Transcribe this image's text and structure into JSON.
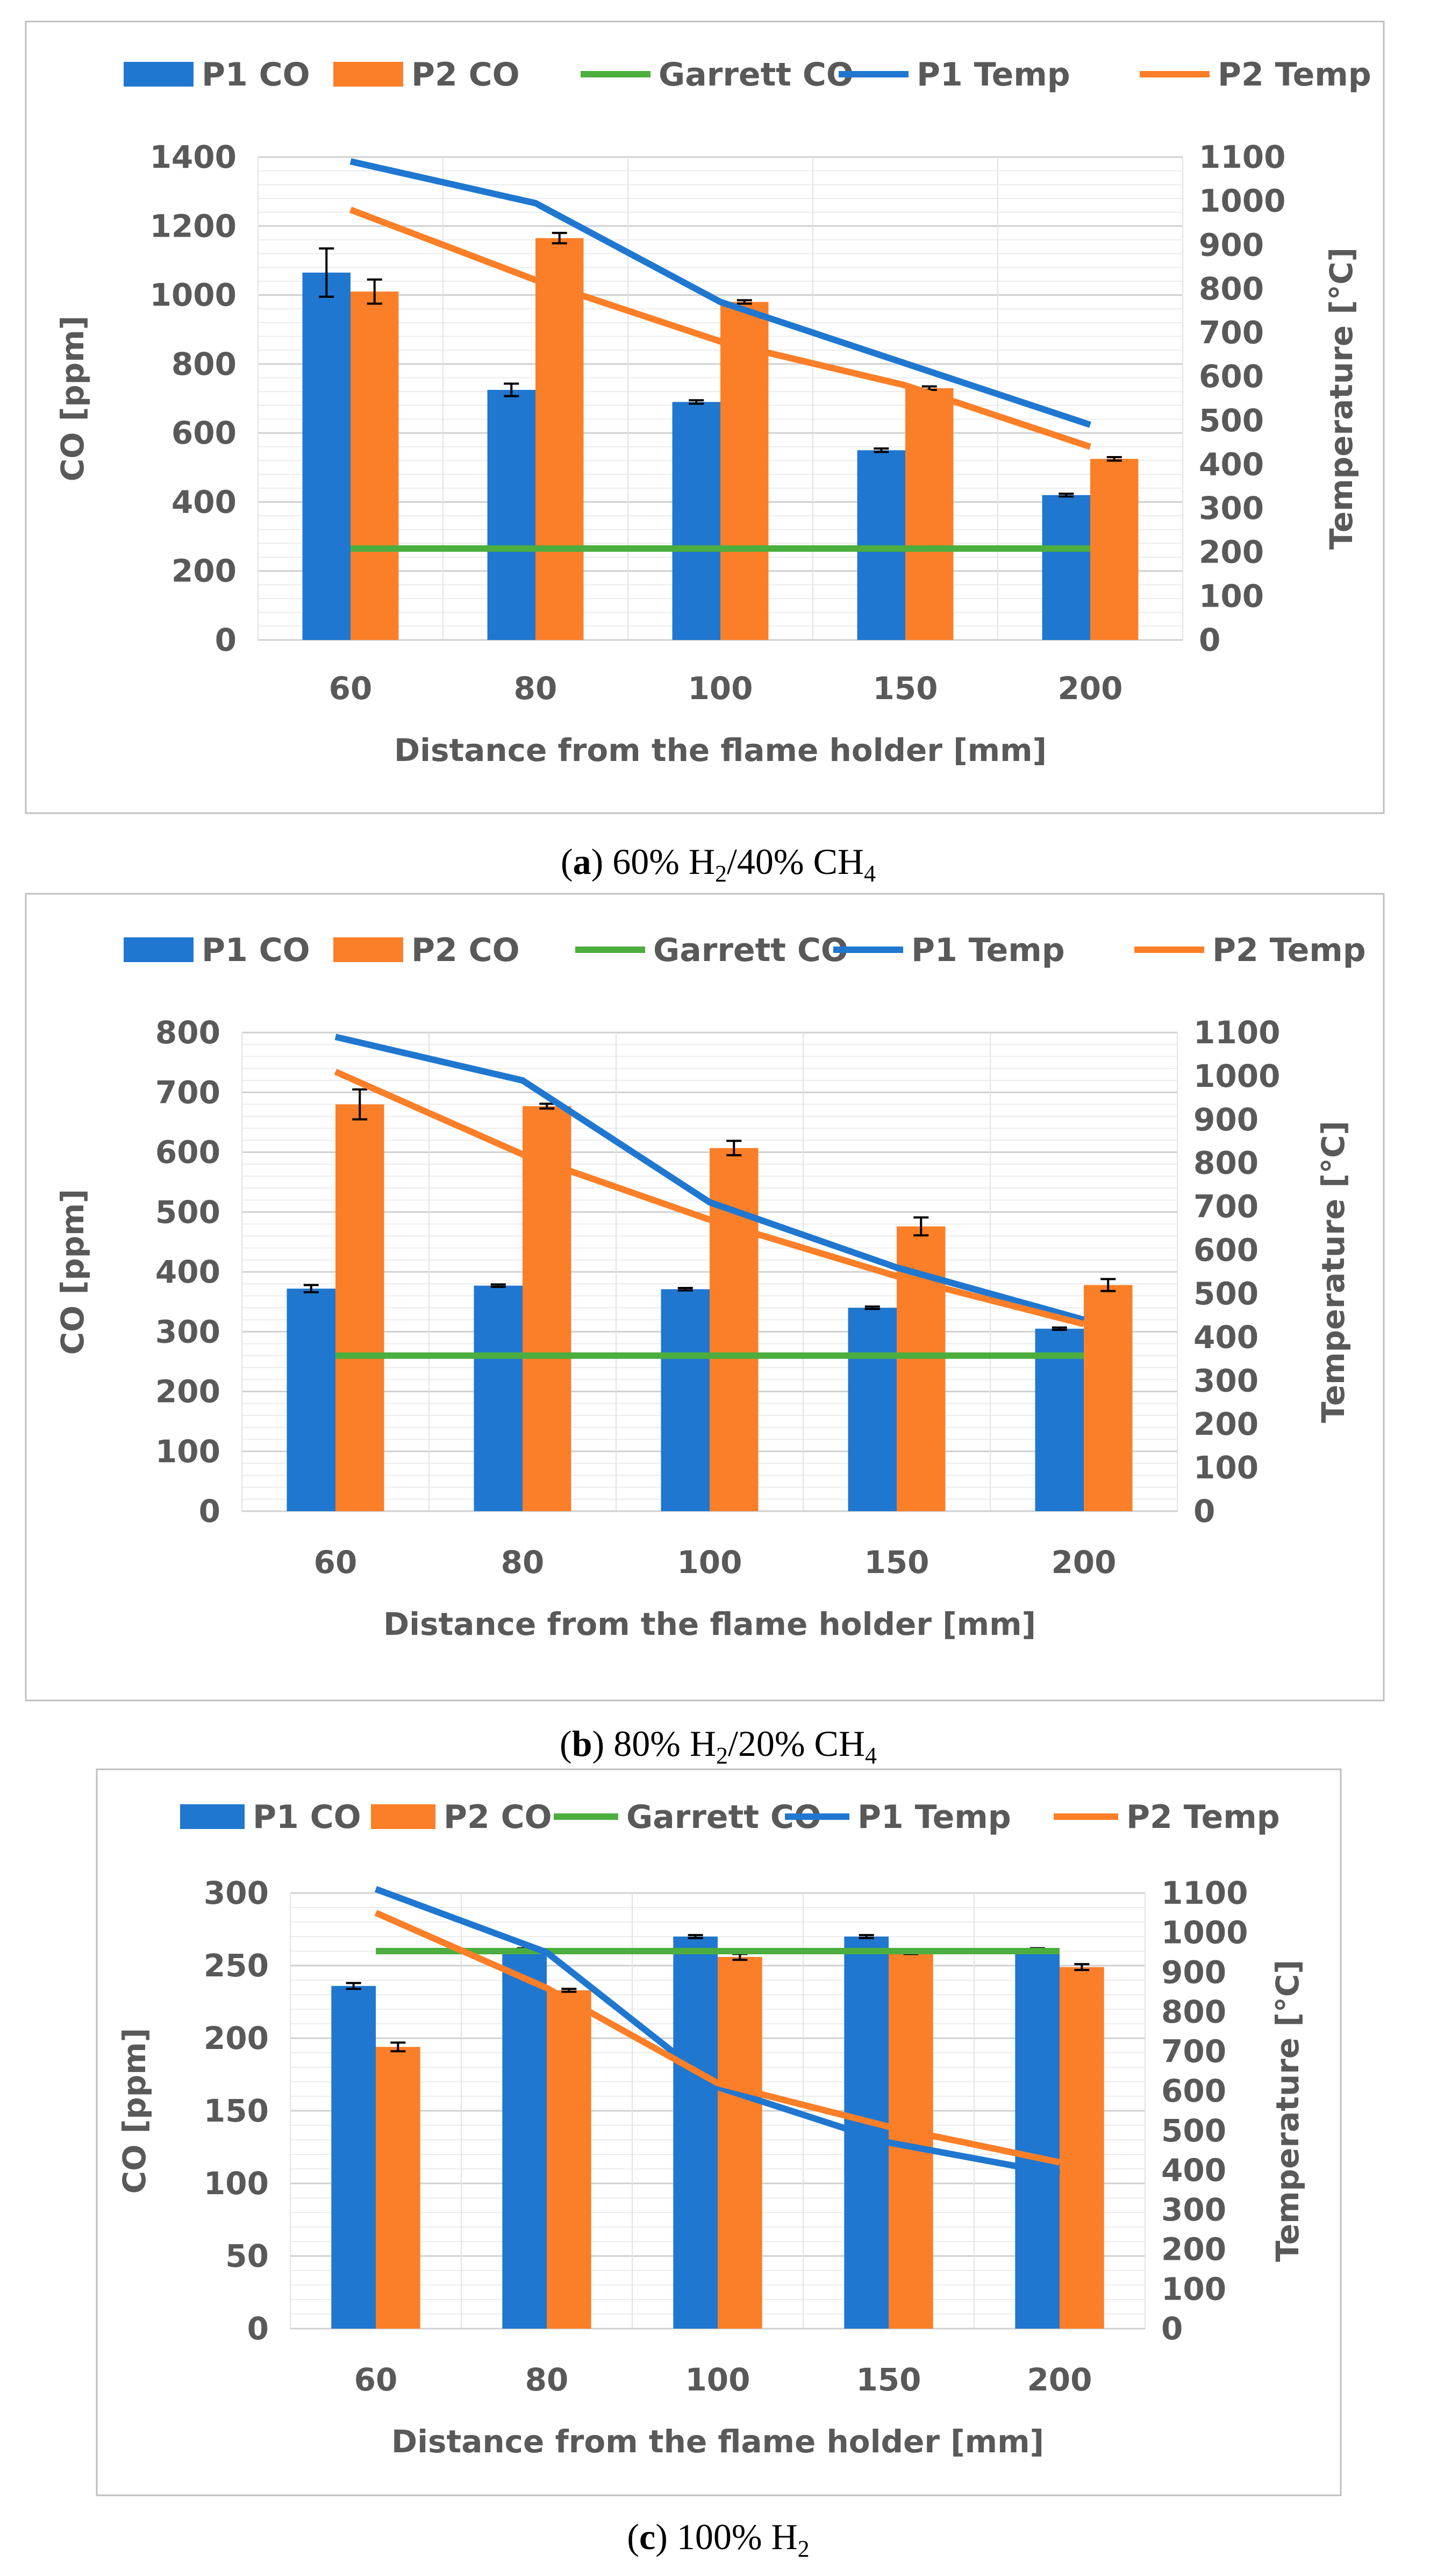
{
  "colors": {
    "p1": "#1f77d0",
    "p2": "#fb7f28",
    "garrett": "#4cae3e",
    "axis_text": "#595959",
    "grid": "#d9d9d9",
    "frame": "#bfbfbf"
  },
  "chart_data": [
    {
      "type": "bar",
      "panel_letter": "a",
      "caption_text": "60% H2/40% CH4",
      "caption_parts": [
        {
          "t": "60% H",
          "sub": false
        },
        {
          "t": "2",
          "sub": true
        },
        {
          "t": "/40% CH",
          "sub": false
        },
        {
          "t": "4",
          "sub": true
        }
      ],
      "categories": [
        "60",
        "80",
        "100",
        "150",
        "200"
      ],
      "xlabel": "Distance from the flame holder [mm]",
      "ylabel": "CO [ppm]",
      "y2label": "Temperature [°C]",
      "ylim": [
        0,
        1400
      ],
      "yticks": [
        0,
        200,
        400,
        600,
        800,
        1000,
        1200,
        1400
      ],
      "y2lim": [
        0,
        1100
      ],
      "y2ticks": [
        0,
        100,
        200,
        300,
        400,
        500,
        600,
        700,
        800,
        900,
        1000,
        1100
      ],
      "legend": [
        "P1 CO",
        "P2 CO",
        "Garrett CO",
        "P1 Temp",
        "P2 Temp"
      ],
      "series": [
        {
          "name": "P1 CO",
          "kind": "bar",
          "values": [
            1065,
            725,
            690,
            550,
            420
          ],
          "errors": [
            70,
            18,
            5,
            5,
            4
          ]
        },
        {
          "name": "P2 CO",
          "kind": "bar",
          "values": [
            1010,
            1165,
            980,
            730,
            525
          ],
          "errors": [
            35,
            15,
            5,
            5,
            5
          ]
        },
        {
          "name": "Garrett CO",
          "kind": "line",
          "axis": "left",
          "values": [
            265,
            265,
            265,
            265,
            265
          ]
        },
        {
          "name": "P1 Temp",
          "kind": "line",
          "axis": "right",
          "values": [
            1090,
            995,
            770,
            630,
            490
          ]
        },
        {
          "name": "P2 Temp",
          "kind": "line",
          "axis": "right",
          "values": [
            980,
            820,
            680,
            580,
            440
          ]
        }
      ]
    },
    {
      "type": "bar",
      "panel_letter": "b",
      "caption_text": "80% H2/20% CH4",
      "caption_parts": [
        {
          "t": "80% H",
          "sub": false
        },
        {
          "t": "2",
          "sub": true
        },
        {
          "t": "/20% CH",
          "sub": false
        },
        {
          "t": "4",
          "sub": true
        }
      ],
      "categories": [
        "60",
        "80",
        "100",
        "150",
        "200"
      ],
      "xlabel": "Distance from the flame holder [mm]",
      "ylabel": "CO [ppm]",
      "y2label": "Temperature [°C]",
      "ylim": [
        0,
        800
      ],
      "yticks": [
        0,
        100,
        200,
        300,
        400,
        500,
        600,
        700,
        800
      ],
      "y2lim": [
        0,
        1100
      ],
      "y2ticks": [
        0,
        100,
        200,
        300,
        400,
        500,
        600,
        700,
        800,
        900,
        1000,
        1100
      ],
      "legend": [
        "P1 CO",
        "P2 CO",
        "Garrett CO",
        "P1 Temp",
        "P2 Temp"
      ],
      "series": [
        {
          "name": "P1 CO",
          "kind": "bar",
          "values": [
            372,
            377,
            371,
            340,
            305
          ],
          "errors": [
            6,
            2,
            2,
            2,
            2
          ]
        },
        {
          "name": "P2 CO",
          "kind": "bar",
          "values": [
            680,
            677,
            607,
            476,
            378
          ],
          "errors": [
            25,
            4,
            12,
            15,
            10
          ]
        },
        {
          "name": "Garrett CO",
          "kind": "line",
          "axis": "left",
          "values": [
            260,
            260,
            260,
            260,
            260
          ]
        },
        {
          "name": "P1 Temp",
          "kind": "line",
          "axis": "right",
          "values": [
            1090,
            990,
            710,
            560,
            440
          ]
        },
        {
          "name": "P2 Temp",
          "kind": "line",
          "axis": "right",
          "values": [
            1010,
            820,
            670,
            540,
            430
          ]
        }
      ]
    },
    {
      "type": "bar",
      "panel_letter": "c",
      "caption_text": "100% H2",
      "caption_parts": [
        {
          "t": "100% H",
          "sub": false
        },
        {
          "t": "2",
          "sub": true
        }
      ],
      "categories": [
        "60",
        "80",
        "100",
        "150",
        "200"
      ],
      "xlabel": "Distance from the flame holder [mm]",
      "ylabel": "CO [ppm]",
      "y2label": "Temperature [°C]",
      "ylim": [
        0,
        300
      ],
      "yticks": [
        0,
        50,
        100,
        150,
        200,
        250,
        300
      ],
      "y2lim": [
        0,
        1100
      ],
      "y2ticks": [
        0,
        100,
        200,
        300,
        400,
        500,
        600,
        700,
        800,
        900,
        1000,
        1100
      ],
      "legend": [
        "P1 CO",
        "P2 CO",
        "Garrett CO",
        "P1 Temp",
        "P2 Temp"
      ],
      "series": [
        {
          "name": "P1 CO",
          "kind": "bar",
          "values": [
            236,
            261,
            270,
            270,
            261
          ],
          "errors": [
            2,
            1,
            1,
            1,
            1
          ]
        },
        {
          "name": "P2 CO",
          "kind": "bar",
          "values": [
            194,
            233,
            256,
            259,
            249
          ],
          "errors": [
            3,
            1,
            2,
            1,
            2
          ]
        },
        {
          "name": "Garrett CO",
          "kind": "line",
          "axis": "left",
          "values": [
            260,
            260,
            260,
            260,
            260
          ]
        },
        {
          "name": "P1 Temp",
          "kind": "line",
          "axis": "right",
          "values": [
            1110,
            950,
            610,
            470,
            390
          ]
        },
        {
          "name": "P2 Temp",
          "kind": "line",
          "axis": "right",
          "values": [
            1050,
            860,
            620,
            510,
            420
          ]
        }
      ]
    }
  ]
}
